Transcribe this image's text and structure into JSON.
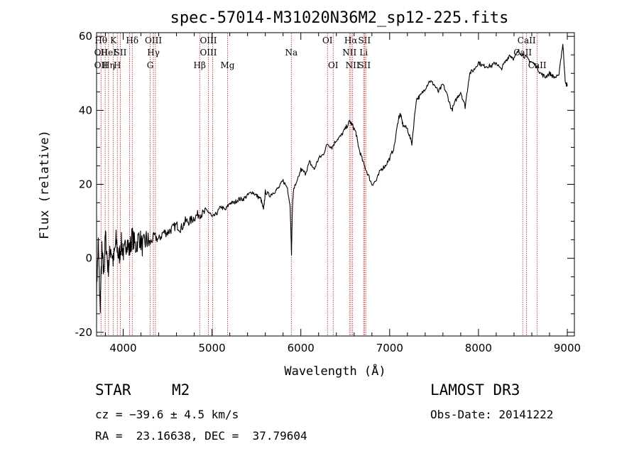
{
  "chart_data": {
    "type": "line",
    "title": "spec-57014-M31020N36M2_sp12-225.fits",
    "xlabel": "Wavelength (Å)",
    "ylabel": "Flux (relative)",
    "xlim": [
      3700,
      9080
    ],
    "ylim": [
      -21,
      61
    ],
    "xticks": [
      4000,
      5000,
      6000,
      7000,
      8000,
      9000
    ],
    "xtick_labels": [
      "4000",
      "5000",
      "6000",
      "7000",
      "8000",
      "9000"
    ],
    "yticks": [
      -20,
      0,
      20,
      40,
      60
    ],
    "ytick_labels": [
      "-20",
      "0",
      "20",
      "40",
      "60"
    ],
    "grid": false,
    "series": [
      {
        "name": "spectrum",
        "x": [
          3700,
          3720,
          3740,
          3760,
          3780,
          3800,
          3830,
          3860,
          3890,
          3920,
          3950,
          3980,
          4010,
          4040,
          4070,
          4100,
          4140,
          4180,
          4220,
          4260,
          4300,
          4350,
          4400,
          4450,
          4500,
          4550,
          4600,
          4650,
          4700,
          4750,
          4800,
          4850,
          4900,
          4950,
          5000,
          5050,
          5100,
          5150,
          5200,
          5250,
          5300,
          5350,
          5400,
          5450,
          5500,
          5550,
          5580,
          5600,
          5650,
          5700,
          5750,
          5800,
          5850,
          5880,
          5895,
          5905,
          5920,
          5950,
          6000,
          6050,
          6100,
          6150,
          6200,
          6250,
          6300,
          6350,
          6400,
          6450,
          6500,
          6550,
          6580,
          6620,
          6650,
          6700,
          6750,
          6800,
          6850,
          6900,
          6950,
          7000,
          7050,
          7100,
          7120,
          7150,
          7200,
          7250,
          7300,
          7350,
          7400,
          7450,
          7500,
          7550,
          7600,
          7650,
          7700,
          7750,
          7800,
          7850,
          7900,
          7950,
          8000,
          8050,
          8100,
          8150,
          8200,
          8250,
          8300,
          8350,
          8400,
          8450,
          8500,
          8550,
          8600,
          8650,
          8700,
          8750,
          8800,
          8850,
          8900,
          8950,
          8980,
          9000
        ],
        "y": [
          -8,
          4,
          -14,
          2,
          -4,
          6,
          -3,
          3,
          -1,
          5,
          0,
          4,
          1,
          5,
          2,
          6,
          3,
          6,
          3,
          5,
          4,
          6,
          5,
          7,
          7,
          8,
          9,
          8,
          10,
          10,
          11,
          12,
          12,
          13,
          11,
          12,
          14,
          13,
          15,
          15,
          16,
          16,
          17,
          18,
          17,
          16,
          13,
          18,
          17,
          18,
          19,
          21,
          19,
          14,
          1,
          14,
          19,
          20,
          24,
          23,
          26,
          24,
          27,
          28,
          31,
          30,
          32,
          33,
          35,
          37,
          36,
          34,
          30,
          26,
          23,
          20,
          21,
          24,
          25,
          27,
          30,
          38,
          39,
          36,
          35,
          31,
          43,
          44,
          46,
          48,
          47,
          45,
          47,
          44,
          40,
          43,
          45,
          41,
          50,
          51,
          53,
          52,
          52,
          52,
          53,
          51,
          53,
          55,
          54,
          56,
          55,
          54,
          53,
          52,
          50,
          49,
          50,
          49,
          49,
          58,
          47,
          47
        ]
      }
    ],
    "line_markers": [
      {
        "x": 3750,
        "upper": "Hθ",
        "mid": "OII",
        "low": "OII"
      },
      {
        "x": 3797,
        "upper": "",
        "mid": "",
        "low": ""
      },
      {
        "x": 3835,
        "upper": "",
        "mid": "HeI",
        "low": "Hη"
      },
      {
        "x": 3889,
        "upper": "K",
        "mid": "",
        "low": ""
      },
      {
        "x": 3934,
        "upper": "",
        "mid": "",
        "low": "H"
      },
      {
        "x": 3968,
        "upper": "",
        "mid": "SII",
        "low": ""
      },
      {
        "x": 4072,
        "upper": "",
        "mid": "",
        "low": ""
      },
      {
        "x": 4102,
        "upper": "Hδ",
        "mid": "",
        "low": ""
      },
      {
        "x": 4304,
        "upper": "",
        "mid": "",
        "low": "G"
      },
      {
        "x": 4340,
        "upper": "OIII",
        "mid": "Hγ",
        "low": ""
      },
      {
        "x": 4363,
        "upper": "",
        "mid": "",
        "low": ""
      },
      {
        "x": 4861,
        "upper": "",
        "mid": "",
        "low": "Hβ"
      },
      {
        "x": 4959,
        "upper": "OIII",
        "mid": "OIII",
        "low": ""
      },
      {
        "x": 5007,
        "upper": "",
        "mid": "",
        "low": ""
      },
      {
        "x": 5175,
        "upper": "",
        "mid": "",
        "low": "Mg"
      },
      {
        "x": 5893,
        "upper": "",
        "mid": "Na",
        "low": ""
      },
      {
        "x": 6300,
        "upper": "OI",
        "mid": "",
        "low": ""
      },
      {
        "x": 6364,
        "upper": "",
        "mid": "",
        "low": "OI"
      },
      {
        "x": 6548,
        "upper": "",
        "mid": "NII",
        "low": ""
      },
      {
        "x": 6563,
        "upper": "Hα",
        "mid": "",
        "low": ""
      },
      {
        "x": 6583,
        "upper": "",
        "mid": "",
        "low": "NII"
      },
      {
        "x": 6707,
        "upper": "",
        "mid": "Li",
        "low": ""
      },
      {
        "x": 6716,
        "upper": "SII",
        "mid": "",
        "low": "SII"
      },
      {
        "x": 6731,
        "upper": "",
        "mid": "",
        "low": ""
      },
      {
        "x": 8498,
        "upper": "",
        "mid": "CaII",
        "low": ""
      },
      {
        "x": 8542,
        "upper": "CaII",
        "mid": "",
        "low": ""
      },
      {
        "x": 8662,
        "upper": "",
        "mid": "",
        "low": "CaII"
      }
    ],
    "colors": {
      "spectrum": "#000000",
      "marker": "#b02020",
      "axis": "#000000"
    }
  },
  "footer": {
    "object_class": "STAR",
    "subclass": "M2",
    "release": "LAMOST DR3",
    "cz": "cz = −39.6 ± 4.5 km/s",
    "obs_date": "Obs-Date: 20141222",
    "radec": "RA =  23.16638, DEC =  37.79604"
  }
}
